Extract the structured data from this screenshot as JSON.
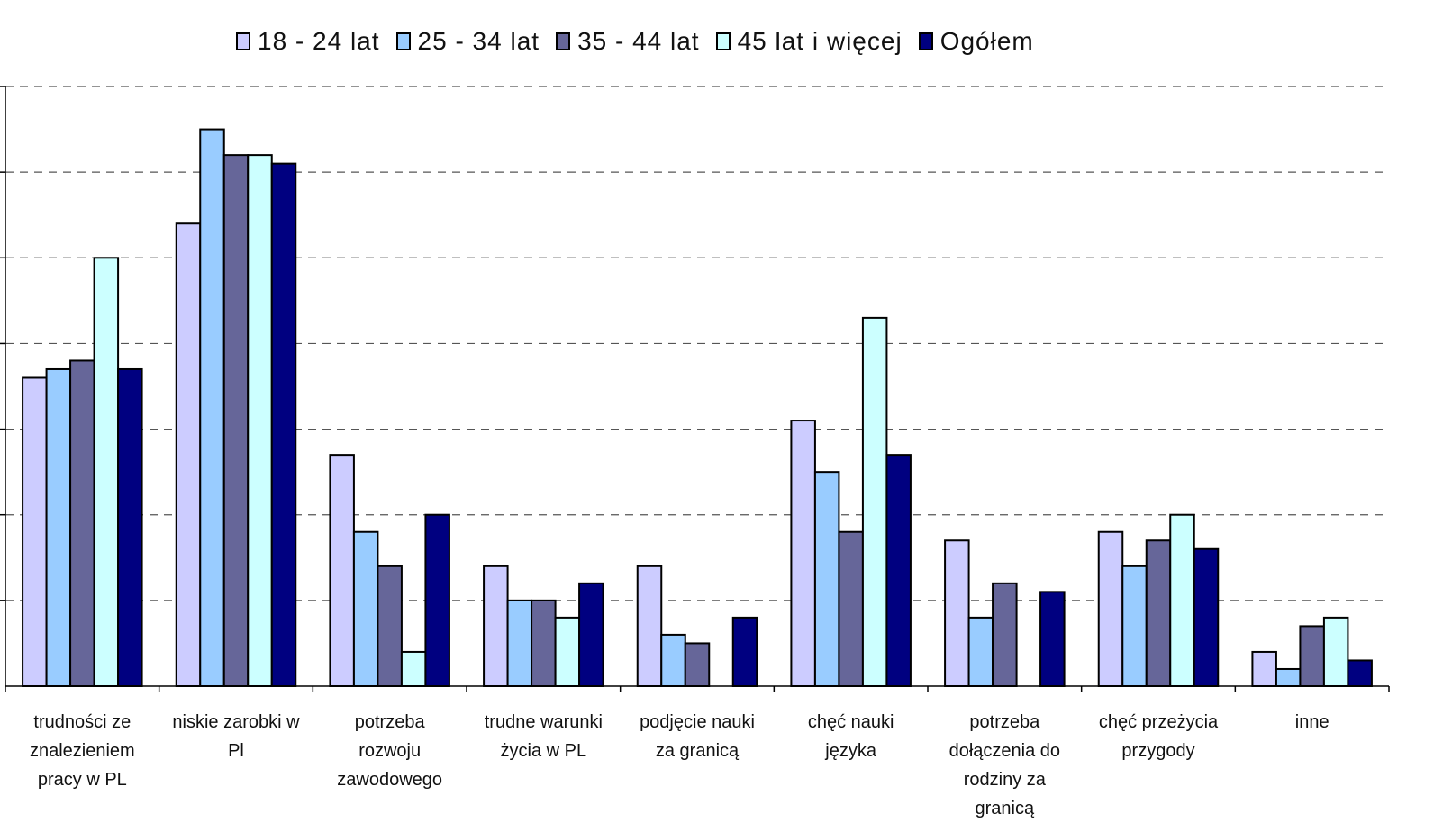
{
  "chart_data": {
    "type": "bar",
    "categories": [
      "trudności ze znalezieniem pracy w PL",
      "niskie zarobki w Pl",
      "potrzeba rozwoju zawodowego",
      "trudne warunki życia w PL",
      "podjęcie nauki za granicą",
      "chęć nauki języka",
      "potrzeba dołączenia do rodziny za granicą",
      "chęć przeżycia przygody",
      "inne"
    ],
    "category_lines": [
      [
        "trudności ze",
        "znalezieniem",
        "pracy w PL"
      ],
      [
        "niskie zarobki w",
        "Pl"
      ],
      [
        "potrzeba",
        "rozwoju",
        "zawodowego"
      ],
      [
        "trudne warunki",
        "życia w PL"
      ],
      [
        "podjęcie nauki",
        "za granicą"
      ],
      [
        "chęć nauki",
        "języka"
      ],
      [
        "potrzeba",
        "dołączenia do",
        "rodziny za",
        "granicą"
      ],
      [
        "chęć przeżycia",
        "przygody"
      ],
      [
        "inne"
      ]
    ],
    "series": [
      {
        "name": "18 - 24 lat",
        "color": "#ccccff",
        "values": [
          36.0,
          54.0,
          27.0,
          14.0,
          14.0,
          31.0,
          17.0,
          18.0,
          4.0
        ]
      },
      {
        "name": "25 - 34 lat",
        "color": "#99ccff",
        "values": [
          37.0,
          65.0,
          18.0,
          10.0,
          6.0,
          25.0,
          8.0,
          14.0,
          2.0
        ]
      },
      {
        "name": "35 - 44 lat",
        "color": "#666699",
        "values": [
          38.0,
          62.0,
          14.0,
          10.0,
          5.0,
          18.0,
          12.0,
          17.0,
          7.0
        ]
      },
      {
        "name": "45 lat i więcej",
        "color": "#ccffff",
        "values": [
          50.0,
          62.0,
          4.0,
          8.0,
          0,
          43.0,
          0,
          20.0,
          8.0
        ]
      },
      {
        "name": "Ogółem",
        "color": "#000080",
        "values": [
          37.0,
          61.0,
          20.0,
          12.0,
          8.0,
          27.0,
          11.0,
          16.0,
          3.0
        ]
      }
    ],
    "ylim": [
      0,
      70
    ],
    "ytick_step": 10,
    "grid": true,
    "grid_style": "dashed",
    "legend_position": "top",
    "xlabel": "",
    "ylabel": ""
  }
}
